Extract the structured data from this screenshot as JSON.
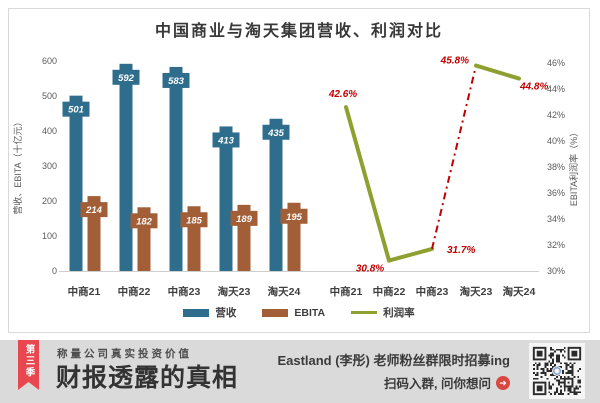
{
  "header": {
    "title": "中国商业与淘天集团营收、利润对比"
  },
  "chart_data": [
    {
      "type": "bar",
      "title": "中国商业与淘天集团营收、利润对比",
      "categories": [
        "中商21",
        "中商22",
        "中商23",
        "淘天23",
        "淘天24"
      ],
      "series": [
        {
          "name": "营收",
          "color": "#2F6D8D",
          "values": [
            501,
            592,
            583,
            413,
            435
          ]
        },
        {
          "name": "EBITA",
          "color": "#A25E37",
          "values": [
            214,
            182,
            185,
            189,
            195
          ]
        }
      ],
      "ylabel": "营收、EBITA（十亿元）",
      "ylim": [
        0,
        600
      ],
      "yticks": [
        0,
        100,
        200,
        300,
        400,
        500,
        600
      ],
      "grid": false,
      "value_labels": true,
      "legend_position": "bottom"
    },
    {
      "type": "line",
      "categories": [
        "中商21",
        "中商22",
        "中商23",
        "淘天23",
        "淘天24"
      ],
      "series": [
        {
          "name": "利润率",
          "color": "#8FA030",
          "values": [
            42.6,
            30.8,
            31.7,
            45.8,
            44.8
          ],
          "point_labels": [
            "42.6%",
            "30.8%",
            "31.7%",
            "45.8%",
            "44.8%"
          ],
          "label_color": "#C00000",
          "dashed_segment": {
            "from": 2,
            "to": 3,
            "color": "#C00000",
            "style": "dash-dot"
          }
        }
      ],
      "ylabel": "EBITA利润率（%）",
      "ylim": [
        30,
        46
      ],
      "yticks": [
        "30%",
        "32%",
        "34%",
        "36%",
        "38%",
        "40%",
        "42%",
        "44%",
        "46%"
      ],
      "axis_side": "right",
      "grid": false,
      "legend_position": "bottom"
    }
  ],
  "legend": {
    "items": [
      {
        "id": "revenue",
        "label": "营收",
        "color": "#2F6D8D",
        "swatch": "rect"
      },
      {
        "id": "ebita",
        "label": "EBITA",
        "color": "#A25E37",
        "swatch": "rect"
      },
      {
        "id": "profit-rate",
        "label": "利润率",
        "color": "#8FA030",
        "swatch": "line"
      }
    ]
  },
  "footer": {
    "ribbon": "第三季",
    "tagline": "称量公司真实投资价值",
    "brand": "财报透露的真相",
    "promo_line1": "Eastland (李彤) 老师粉丝群限时招募ing",
    "promo_line2": "扫码入群, 问你想问"
  },
  "colors": {
    "bar_revenue": "#2F6D8D",
    "bar_ebita": "#A25E37",
    "line_profit": "#8FA030",
    "value_label_red": "#C00000",
    "ribbon_red": "#E8474F",
    "banner_bg": "#DADADA",
    "axis_text": "#595959"
  }
}
